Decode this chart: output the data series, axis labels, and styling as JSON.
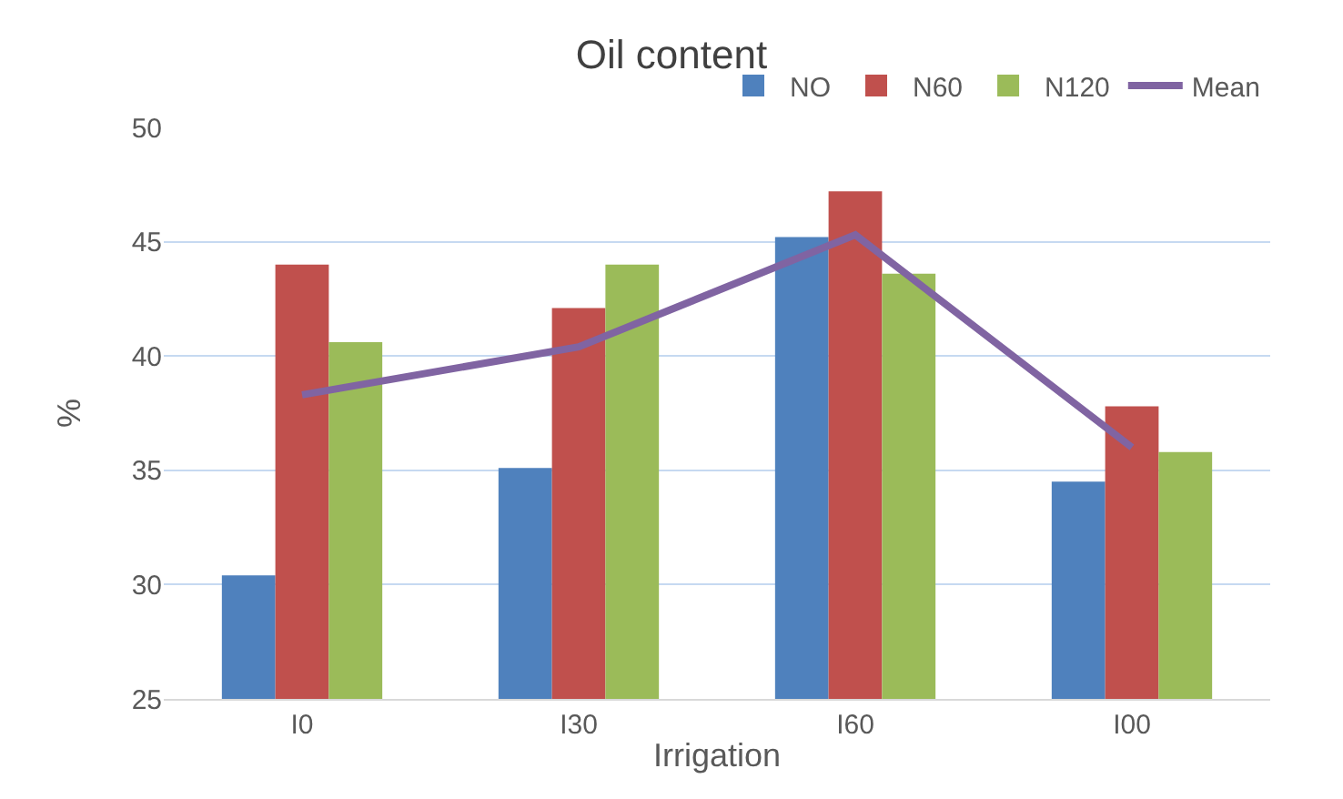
{
  "chart_data": {
    "type": "bar",
    "title": "Oil content",
    "xlabel": "Irrigation",
    "ylabel": "%",
    "categories": [
      "I0",
      "I30",
      "I60",
      "I00"
    ],
    "series": [
      {
        "name": "NO",
        "color": "#4f81bd",
        "values": [
          30.4,
          35.1,
          45.2,
          34.5
        ]
      },
      {
        "name": "N60",
        "color": "#c0504d",
        "values": [
          44.0,
          42.1,
          47.2,
          37.8
        ]
      },
      {
        "name": "N120",
        "color": "#9bbb59",
        "values": [
          40.6,
          44.0,
          43.6,
          35.8
        ]
      },
      {
        "name": "Mean",
        "type": "line",
        "color": "#8064a2",
        "values": [
          38.3,
          40.4,
          45.3,
          36.0
        ]
      }
    ],
    "ylim": [
      25,
      50
    ],
    "yticks": [
      25,
      30,
      35,
      40,
      45,
      50
    ],
    "grid": "y",
    "legend": "top right"
  }
}
